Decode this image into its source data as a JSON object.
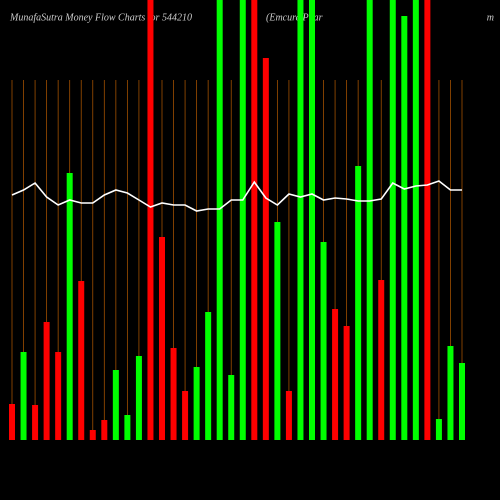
{
  "chart_data": {
    "type": "bar",
    "title": "MunafaSutra  Money  Flow  Charts for 544210",
    "subtitle": "(Emcure  Phar",
    "corner_text": "m",
    "series": [
      {
        "name": "money-flow",
        "colors": [
          "#ff0000",
          "#00ff00",
          "#ff0000",
          "#ff0000",
          "#ff0000",
          "#00ff00",
          "#ff0000",
          "#ff0000",
          "#ff0000",
          "#00ff00",
          "#00ff00",
          "#00ff00",
          "#ff0000",
          "#ff0000",
          "#ff0000",
          "#ff0000",
          "#00ff00",
          "#00ff00",
          "#00ff00",
          "#00ff00",
          "#00ff00",
          "#ff0000",
          "#ff0000",
          "#00ff00",
          "#ff0000",
          "#00ff00",
          "#00ff00",
          "#00ff00",
          "#ff0000",
          "#ff0000",
          "#00ff00",
          "#00ff00",
          "#ff0000",
          "#00ff00",
          "#00ff00",
          "#00ff00",
          "#ff0000",
          "#00ff00",
          "#00ff00",
          "#00ff00"
        ],
        "values": [
          36,
          88,
          35,
          118,
          88,
          267,
          159,
          10,
          20,
          70,
          25,
          84,
          440,
          203,
          92,
          49,
          73,
          128,
          440,
          65,
          440,
          440,
          382,
          218,
          49,
          440,
          440,
          198,
          131,
          114,
          274,
          440,
          160,
          440,
          424,
          440,
          440,
          21,
          94,
          77
        ]
      },
      {
        "name": "price-line",
        "color": "#ffffff",
        "values": [
          245,
          250,
          257,
          243,
          235,
          240,
          237,
          237,
          245,
          250,
          247,
          240,
          233,
          237,
          235,
          235,
          229,
          231,
          231,
          240,
          240,
          258,
          242,
          235,
          246,
          243,
          246,
          240,
          242,
          241,
          239,
          239,
          241,
          257,
          251,
          254,
          255,
          259,
          250,
          250
        ]
      }
    ],
    "grid": true
  }
}
